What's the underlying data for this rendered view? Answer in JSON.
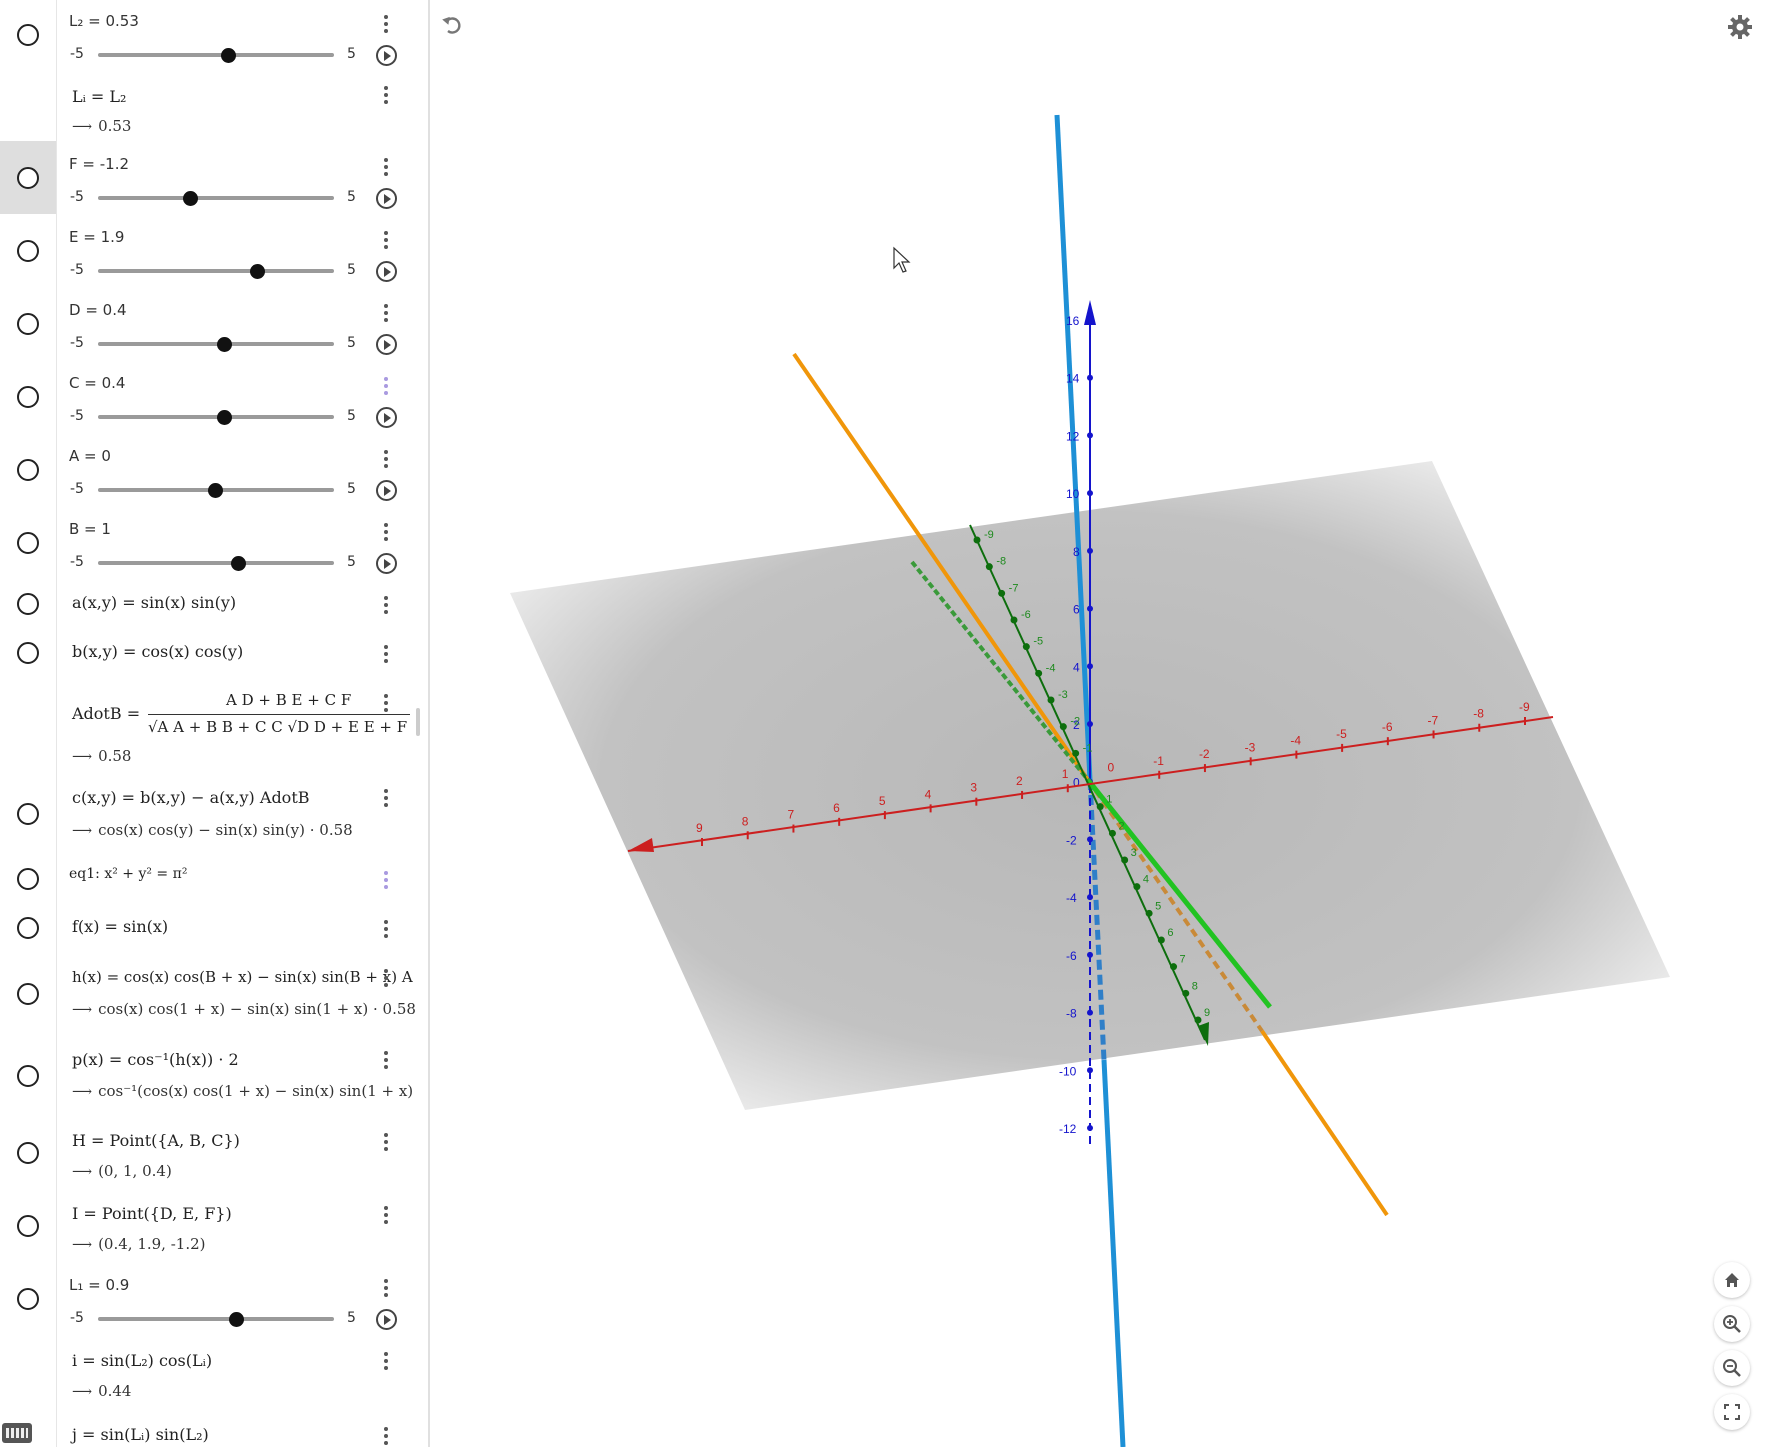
{
  "algebra": {
    "rows": [
      {
        "label": "L₂ = 0.53",
        "min": "-5",
        "max": "5",
        "value": 0.53
      },
      {
        "expr": "Lᵢ = L₂",
        "out": "0.53"
      },
      {
        "label": "F = -1.2",
        "min": "-5",
        "max": "5",
        "value": -1.2
      },
      {
        "label": "E = 1.9",
        "min": "-5",
        "max": "5",
        "value": 1.9
      },
      {
        "label": "D = 0.4",
        "min": "-5",
        "max": "5",
        "value": 0.4
      },
      {
        "label": "C = 0.4",
        "min": "-5",
        "max": "5",
        "value": 0.4
      },
      {
        "label": "A = 0",
        "min": "-5",
        "max": "5",
        "value": 0
      },
      {
        "label": "B = 1",
        "min": "-5",
        "max": "5",
        "value": 1
      },
      {
        "expr": "a(x,y) = sin(x) sin(y)"
      },
      {
        "expr": "b(x,y) = cos(x) cos(y)"
      },
      {
        "expr": "AdotB =",
        "num": "A D + B E + C F",
        "den": "√A A + B B + C C √D D + E E + F",
        "out": "0.58"
      },
      {
        "expr": "c(x,y) = b(x,y) − a(x,y) AdotB",
        "out": "cos(x) cos(y) − sin(x) sin(y) · 0.58"
      },
      {
        "expr": "eq1: x² + y² = π²"
      },
      {
        "expr": "f(x) = sin(x)"
      },
      {
        "expr": "h(x) = cos(x) cos(B + x) − sin(x) sin(B + x) A",
        "out": "cos(x) cos(1 + x) − sin(x) sin(1 + x) · 0.58"
      },
      {
        "expr": "p(x) = cos⁻¹(h(x)) · 2",
        "out": "cos⁻¹(cos(x) cos(1 + x) − sin(x) sin(1 + x)"
      },
      {
        "expr": "H = Point({A, B, C})",
        "out": "(0, 1, 0.4)"
      },
      {
        "expr": "I = Point({D, E, F})",
        "out": "(0.4, 1.9, -1.2)"
      },
      {
        "label": "L₁ = 0.9",
        "min": "-5",
        "max": "5",
        "value": 0.9
      },
      {
        "expr": "i = sin(L₂) cos(Lᵢ)",
        "out": "0.44"
      },
      {
        "expr": "j = sin(Lᵢ) sin(L₂)"
      }
    ]
  },
  "graphics": {
    "x_ticks": [
      "9",
      "8",
      "7",
      "6",
      "5",
      "4",
      "3",
      "2",
      "1",
      "0",
      "-1",
      "-2",
      "-3",
      "-4",
      "-5",
      "-6",
      "-7",
      "-8",
      "-9"
    ],
    "z_ticks": [
      "16",
      "14",
      "12",
      "10",
      "8",
      "6",
      "4",
      "2",
      "0",
      "-2",
      "-4",
      "-6",
      "-8",
      "-10",
      "-12"
    ],
    "y_ticks": [
      "-9",
      "-8",
      "-7",
      "-6",
      "-5",
      "-4",
      "-3",
      "-2",
      "-1",
      "1",
      "2",
      "3",
      "4",
      "5",
      "6",
      "7",
      "8",
      "9"
    ],
    "colors": {
      "x_axis": "#cc1f1f",
      "y_axis": "#0d6e0d",
      "z_axis": "#1414cc",
      "orange": "#f0960a",
      "blue": "#1e90d6",
      "green": "#22c322"
    },
    "icons": [
      "undo-icon",
      "settings-icon",
      "home-icon",
      "zoom-in-icon",
      "zoom-out-icon",
      "fullscreen-icon"
    ]
  }
}
